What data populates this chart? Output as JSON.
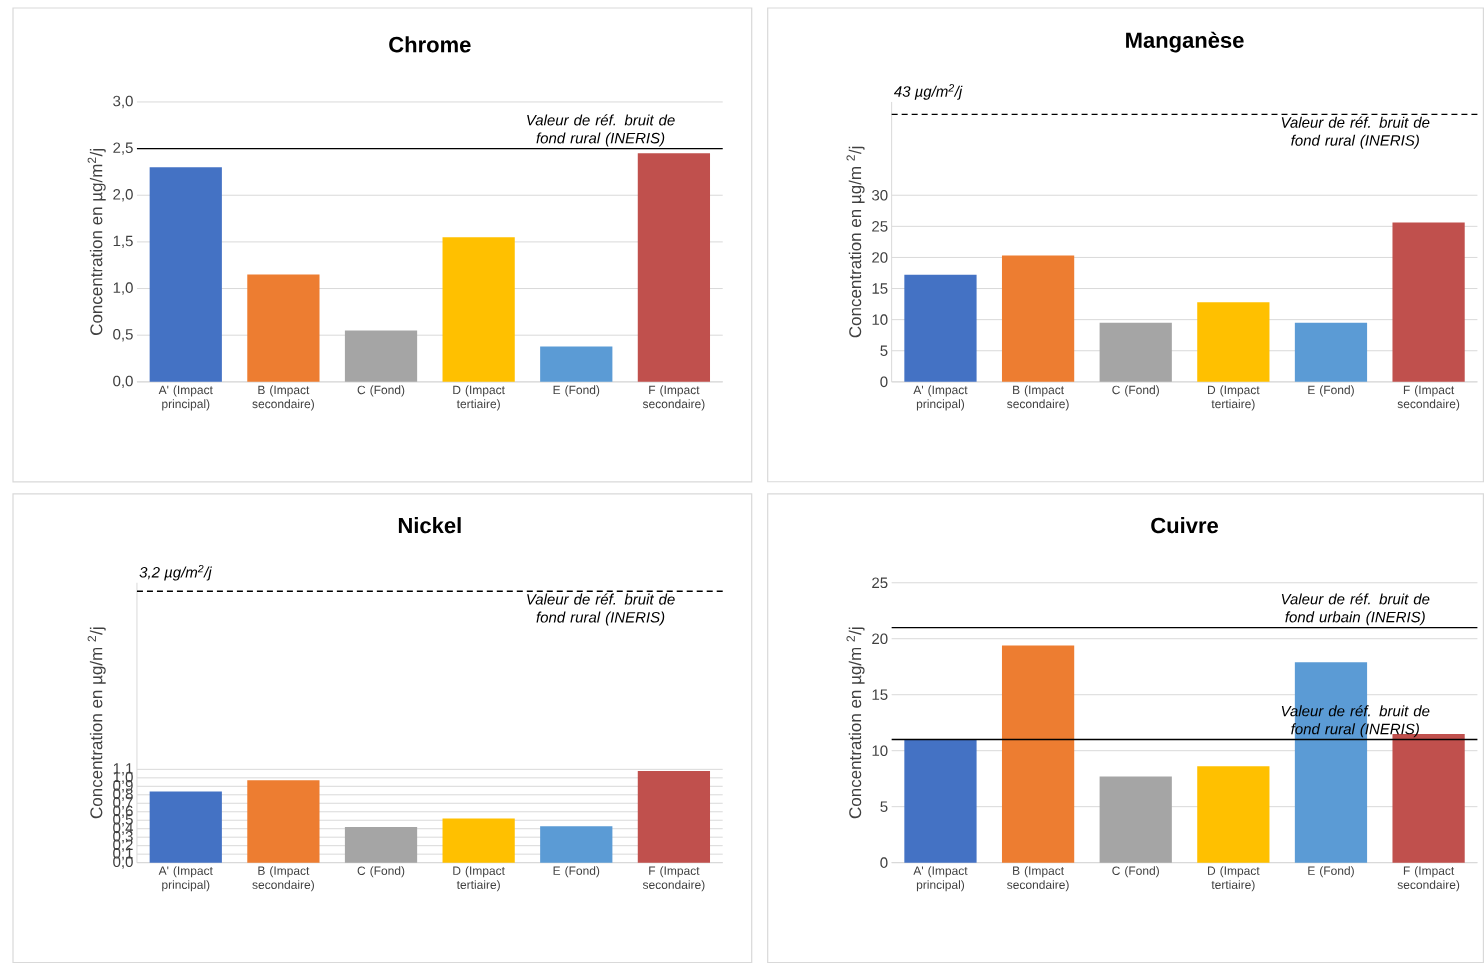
{
  "chart_data": [
    {
      "type": "bar",
      "title": "Chrome",
      "ylabel": "Concentration en µg/m$^{2}$/j",
      "categories": [
        "A' (Impact principal)",
        "B (Impact secondaire)",
        "C (Fond)",
        "D (Impact tertiaire)",
        "E (Fond)",
        "F (Impact secondaire)"
      ],
      "values": [
        2.3,
        1.15,
        0.55,
        1.55,
        0.38,
        2.45
      ],
      "colors": [
        "#4472c4",
        "#ed7d31",
        "#a5a5a5",
        "#ffc000",
        "#5b9bd5",
        "#c0504d"
      ],
      "ylim": [
        0,
        3
      ],
      "yticks": [
        {
          "value": 0,
          "label": "0,0"
        },
        {
          "value": 0.5,
          "label": "0,5"
        },
        {
          "value": 1,
          "label": "1,0"
        },
        {
          "value": 1.5,
          "label": "1,5"
        },
        {
          "value": 2,
          "label": "2,0"
        },
        {
          "value": 2.5,
          "label": "2,5"
        },
        {
          "value": 3,
          "label": "3,0"
        }
      ],
      "grid": "y",
      "ref_lines": [
        {
          "axis": "y",
          "value": 2.5,
          "label": "Valeur de réf. bruit de fond rural (INERIS)",
          "line_style": "solid",
          "color": "#000000"
        }
      ]
    },
    {
      "type": "bar",
      "title": "Manganèse",
      "ylabel": "Concentration en µg/m $^{2}$/j",
      "categories": [
        "A' (Impact principal)",
        "B (Impact secondaire)",
        "C (Fond)",
        "D (Impact tertiaire)",
        "E (Fond)",
        "F (Impact secondaire)"
      ],
      "values": [
        17.2,
        20.3,
        9.5,
        12.8,
        9.5,
        25.6
      ],
      "colors": [
        "#4472c4",
        "#ed7d31",
        "#a5a5a5",
        "#ffc000",
        "#5b9bd5",
        "#c0504d"
      ],
      "ylim": [
        0,
        45
      ],
      "yticks": [
        0,
        5,
        10,
        15,
        20,
        25,
        30
      ],
      "grid": "y",
      "annotations": [
        "43 µg/m$^{2}$/j"
      ],
      "ref_lines": [
        {
          "axis": "y",
          "value": 43,
          "label": "Valeur de réf. bruit de fond rural (INERIS)",
          "line_style": "dashed",
          "color": "#000000"
        }
      ]
    },
    {
      "type": "bar",
      "title": "Nickel",
      "ylabel": "Concentration en µg/m $^{2}$/j",
      "categories": [
        "A' (Impact principal)",
        "B (Impact secondaire)",
        "C (Fond)",
        "D (Impact tertiaire)",
        "E (Fond)",
        "F (Impact secondaire)"
      ],
      "values": [
        0.84,
        0.97,
        0.42,
        0.52,
        0.43,
        1.08
      ],
      "colors": [
        "#4472c4",
        "#ed7d31",
        "#a5a5a5",
        "#ffc000",
        "#5b9bd5",
        "#c0504d"
      ],
      "ylim": [
        0,
        3.3
      ],
      "yticks": [
        {
          "value": 0,
          "label": "0,0"
        },
        {
          "value": 0.1,
          "label": "0,1"
        },
        {
          "value": 0.2,
          "label": "0,2"
        },
        {
          "value": 0.3,
          "label": "0,3"
        },
        {
          "value": 0.4,
          "label": "0,4"
        },
        {
          "value": 0.5,
          "label": "0,5"
        },
        {
          "value": 0.6,
          "label": "0,6"
        },
        {
          "value": 0.7,
          "label": "0,7"
        },
        {
          "value": 0.8,
          "label": "0,8"
        },
        {
          "value": 0.9,
          "label": "0,9"
        },
        {
          "value": 1.0,
          "label": "1,0"
        },
        {
          "value": 1.1,
          "label": "1,1"
        }
      ],
      "grid": "y",
      "annotations": [
        "3,2 µg/m$^{2}$/j"
      ],
      "ref_lines": [
        {
          "axis": "y",
          "value": 3.2,
          "label": "Valeur de réf. bruit de fond rural (INERIS)",
          "line_style": "dashed",
          "color": "#000000"
        }
      ]
    },
    {
      "type": "bar",
      "title": "Cuivre",
      "ylabel": "Concentration en µg/m $^{2}$/j",
      "categories": [
        "A' (Impact principal)",
        "B (Impact secondaire)",
        "C (Fond)",
        "D (Impact tertiaire)",
        "E (Fond)",
        "F (Impact secondaire)"
      ],
      "values": [
        11,
        19.4,
        7.7,
        8.6,
        17.9,
        11.5
      ],
      "colors": [
        "#4472c4",
        "#ed7d31",
        "#a5a5a5",
        "#ffc000",
        "#5b9bd5",
        "#c0504d"
      ],
      "ylim": [
        0,
        25
      ],
      "yticks": [
        0,
        5,
        10,
        15,
        20,
        25
      ],
      "grid": "y",
      "ref_lines": [
        {
          "axis": "y",
          "value": 21,
          "label": "Valeur de réf. bruit de fond urbain (INERIS)",
          "line_style": "solid",
          "color": "#000000"
        },
        {
          "axis": "y",
          "value": 11,
          "label": "Valeur de réf. bruit de fond rural (INERIS)",
          "line_style": "solid",
          "color": "#000000"
        }
      ]
    }
  ]
}
